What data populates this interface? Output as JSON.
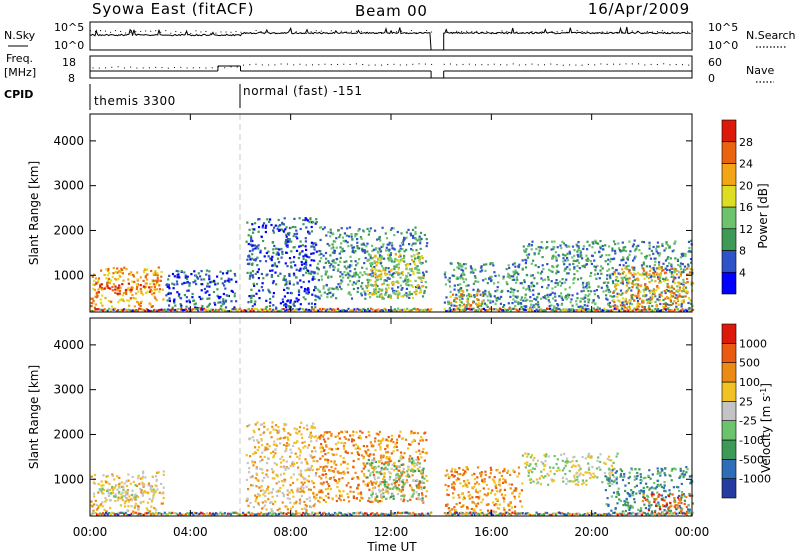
{
  "header": {
    "station": "Syowa East (fitACF)",
    "beam": "Beam 00",
    "date": "16/Apr/2009"
  },
  "sky_panel": {
    "left_label": "N.Sky",
    "right_label": "N.Search",
    "left_ticks": [
      "10^5",
      "10^0"
    ],
    "right_ticks": [
      "10^5",
      "10^0"
    ]
  },
  "freq_panel": {
    "left_label_1": "Freq.",
    "left_label_2": "[MHz]",
    "right_label": "Nave",
    "left_ticks": [
      "18",
      "8"
    ],
    "right_ticks": [
      "60",
      "0"
    ]
  },
  "cpid_panel": {
    "label": "CPID",
    "modes": [
      {
        "name": "themis 3300",
        "start_hour": 0,
        "end_hour": 6
      },
      {
        "name": "normal (fast) -151",
        "start_hour": 6,
        "end_hour": 24
      }
    ]
  },
  "time_axis": {
    "title": "Time UT",
    "ticks": [
      "00:00",
      "04:00",
      "08:00",
      "12:00",
      "16:00",
      "20:00",
      "00:00"
    ]
  },
  "chart_data": [
    {
      "type": "heatmap",
      "panel": "power",
      "xlabel": "Time UT",
      "ylabel": "Slant Range [km]",
      "xlim": [
        0,
        24
      ],
      "ylim": [
        180,
        4600
      ],
      "yticks": [
        1000,
        2000,
        3000,
        4000
      ],
      "colorbar": {
        "label": "Power [dB]",
        "ticks": [
          "28",
          "24",
          "20",
          "16",
          "12",
          "8",
          "4"
        ],
        "colors": [
          "#0000ff",
          "#2e52c8",
          "#3c9a56",
          "#6dc36d",
          "#dddd22",
          "#f2a516",
          "#ea6410",
          "#dc1a0c"
        ]
      },
      "regions": [
        {
          "t0": 0.0,
          "t1": 2.9,
          "r0": 300,
          "r1": 1200,
          "level": 5
        },
        {
          "t0": 0.2,
          "t1": 2.6,
          "r0": 600,
          "r1": 850,
          "level": 6
        },
        {
          "t0": 3.0,
          "t1": 5.8,
          "r0": 280,
          "r1": 1150,
          "level": 1
        },
        {
          "t0": 6.2,
          "t1": 9.0,
          "r0": 300,
          "r1": 2300,
          "level": 1
        },
        {
          "t0": 9.0,
          "t1": 13.4,
          "r0": 500,
          "r1": 2100,
          "level": 2
        },
        {
          "t0": 11.0,
          "t1": 13.3,
          "r0": 520,
          "r1": 1500,
          "level": 4
        },
        {
          "t0": 14.1,
          "t1": 17.2,
          "r0": 250,
          "r1": 1300,
          "level": 2
        },
        {
          "t0": 14.3,
          "t1": 15.6,
          "r0": 300,
          "r1": 700,
          "level": 5
        },
        {
          "t0": 17.2,
          "t1": 24.0,
          "r0": 250,
          "r1": 1800,
          "level": 2
        },
        {
          "t0": 20.8,
          "t1": 24.0,
          "r0": 300,
          "r1": 1200,
          "level": 5
        }
      ]
    },
    {
      "type": "heatmap",
      "panel": "velocity",
      "xlabel": "Time UT",
      "ylabel": "Slant Range [km]",
      "xlim": [
        0,
        24
      ],
      "ylim": [
        180,
        4600
      ],
      "yticks": [
        1000,
        2000,
        3000,
        4000
      ],
      "colorbar": {
        "label": "Velocity [m s^-1]",
        "ticks": [
          "1000",
          "500",
          "100",
          "25",
          "-25",
          "-100",
          "-500",
          "-1000"
        ],
        "colors": [
          "#243ca0",
          "#2f6db8",
          "#3c9a56",
          "#6dc36d",
          "#c4c4c4",
          "#f2c224",
          "#ec8a16",
          "#ea5a10",
          "#dc1a0c"
        ]
      },
      "regions": [
        {
          "t0": 0.0,
          "t1": 2.9,
          "r0": 300,
          "r1": 1200,
          "level": 5
        },
        {
          "t0": 0.3,
          "t1": 2.6,
          "r0": 550,
          "r1": 900,
          "level": 4
        },
        {
          "t0": 6.2,
          "t1": 9.0,
          "r0": 300,
          "r1": 2300,
          "level": 5
        },
        {
          "t0": 9.0,
          "t1": 13.4,
          "r0": 500,
          "r1": 2100,
          "level": 6
        },
        {
          "t0": 11.0,
          "t1": 13.3,
          "r0": 520,
          "r1": 1500,
          "level": 3
        },
        {
          "t0": 14.1,
          "t1": 17.2,
          "r0": 250,
          "r1": 1300,
          "level": 6
        },
        {
          "t0": 17.2,
          "t1": 21.0,
          "r0": 900,
          "r1": 1600,
          "level": 4
        },
        {
          "t0": 20.5,
          "t1": 24.0,
          "r0": 300,
          "r1": 1300,
          "level": 2
        },
        {
          "t0": 22.0,
          "t1": 24.0,
          "r0": 250,
          "r1": 700,
          "level": 7
        }
      ]
    }
  ]
}
